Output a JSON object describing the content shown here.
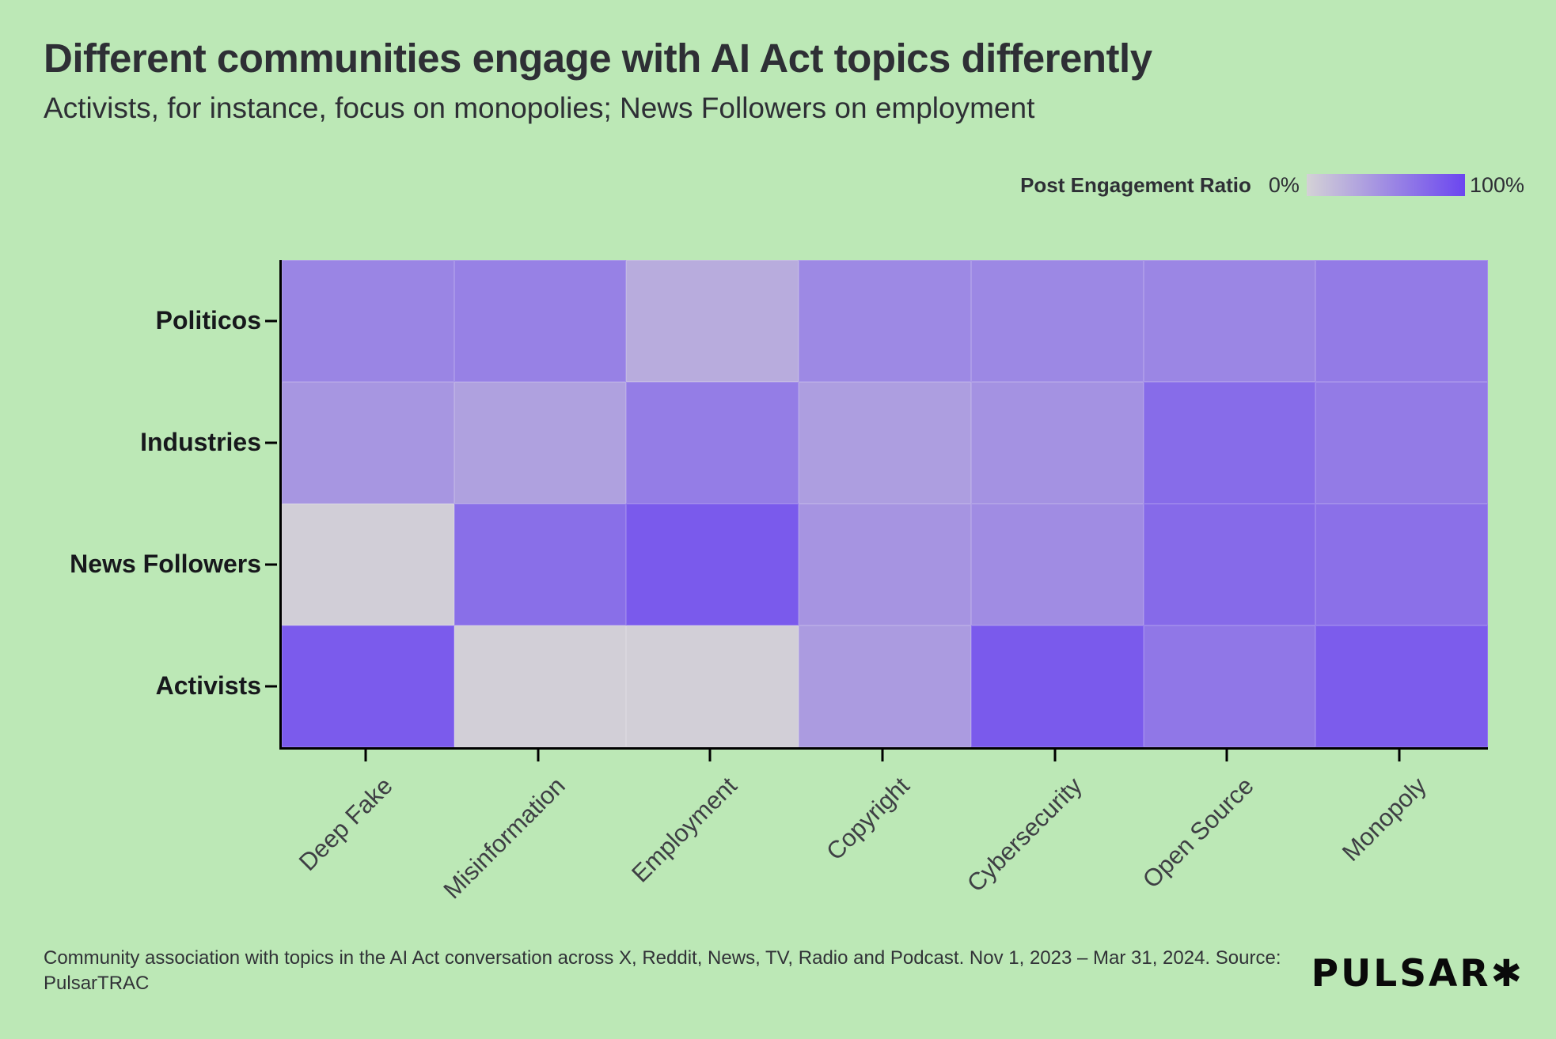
{
  "title": "Different communities engage with AI Act topics differently",
  "subtitle": "Activists, for instance, focus on monopolies; News Followers on employment",
  "legend": {
    "label": "Post Engagement Ratio",
    "min_label": "0%",
    "max_label": "100%"
  },
  "chart_data": {
    "type": "heatmap",
    "title": "Different communities engage with AI Act topics differently",
    "subtitle": "Activists, for instance, focus on monopolies; News Followers on employment",
    "value_label": "Post Engagement Ratio",
    "x_categories": [
      "Deep Fake",
      "Misinformation",
      "Employment",
      "Copyright",
      "Cybersecurity",
      "Open Source",
      "Monopoly"
    ],
    "y_categories": [
      "Politicos",
      "Industries",
      "News Followers",
      "Activists"
    ],
    "values_percent": [
      [
        55,
        58,
        27,
        52,
        53,
        54,
        62
      ],
      [
        43,
        35,
        61,
        37,
        46,
        73,
        62
      ],
      [
        3,
        71,
        86,
        44,
        50,
        74,
        70
      ],
      [
        85,
        2,
        2,
        39,
        86,
        65,
        84
      ]
    ],
    "scale": {
      "min": 0,
      "max": 100,
      "min_color": "#d4d2d6",
      "max_color": "#6b46f0"
    },
    "legend_position": "top-right",
    "x_label_rotation_deg": 45,
    "grid": false
  },
  "footer": {
    "lines": [
      "Community association with topics in the AI Act conversation across X, Reddit, News, TV, Radio and Podcast. Nov 1, 2023 – Mar 31, 2024. Source:",
      "PulsarTRAC"
    ]
  },
  "logo": {
    "text": "PULSAR✱"
  },
  "colors": {
    "background": "#bce8b6",
    "title_text": "#2e2f35",
    "axis_label_text": "#17181c",
    "x_label_text": "#3e3f44",
    "axis_line": "#000000",
    "heatmap_min": "#d4d2d6",
    "heatmap_max": "#6b46f0"
  }
}
